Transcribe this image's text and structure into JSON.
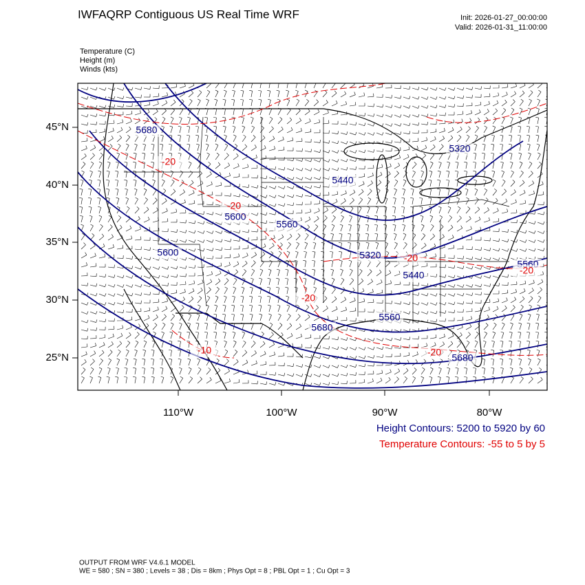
{
  "header": {
    "title": "IWFAQRP Contiguous US Real Time WRF",
    "init": "Init: 2026-01-27_00:00:00",
    "valid": "Valid: 2026-01-31_11:00:00",
    "fields": [
      "Temperature   (C)",
      "Height   (m)",
      "Winds   (kts)"
    ]
  },
  "map": {
    "lat_labels": [
      "45°N",
      "40°N",
      "35°N",
      "30°N",
      "25°N"
    ],
    "lon_labels": [
      "110°W",
      "100°W",
      "90°W",
      "80°W"
    ],
    "height_labels": [
      "5680",
      "5320",
      "5440",
      "5600",
      "5560",
      "5600",
      "5320",
      "5440",
      "5560",
      "5560",
      "5680",
      "5680"
    ],
    "temperature_labels": [
      "-20",
      "-20",
      "-20",
      "-20",
      "-20",
      "-10",
      "-20"
    ]
  },
  "legend": {
    "height": "Height Contours: 5200 to 5920 by 60",
    "temperature": "Temperature Contours: -55 to 5 by 5"
  },
  "footer": {
    "model": "OUTPUT FROM WRF V4.6.1 MODEL",
    "options": "WE = 580 ; SN = 380 ; Levels = 38 ; Dis = 8km ; Phys Opt = 8 ; PBL Opt = 1 ; Cu Opt = 3"
  }
}
